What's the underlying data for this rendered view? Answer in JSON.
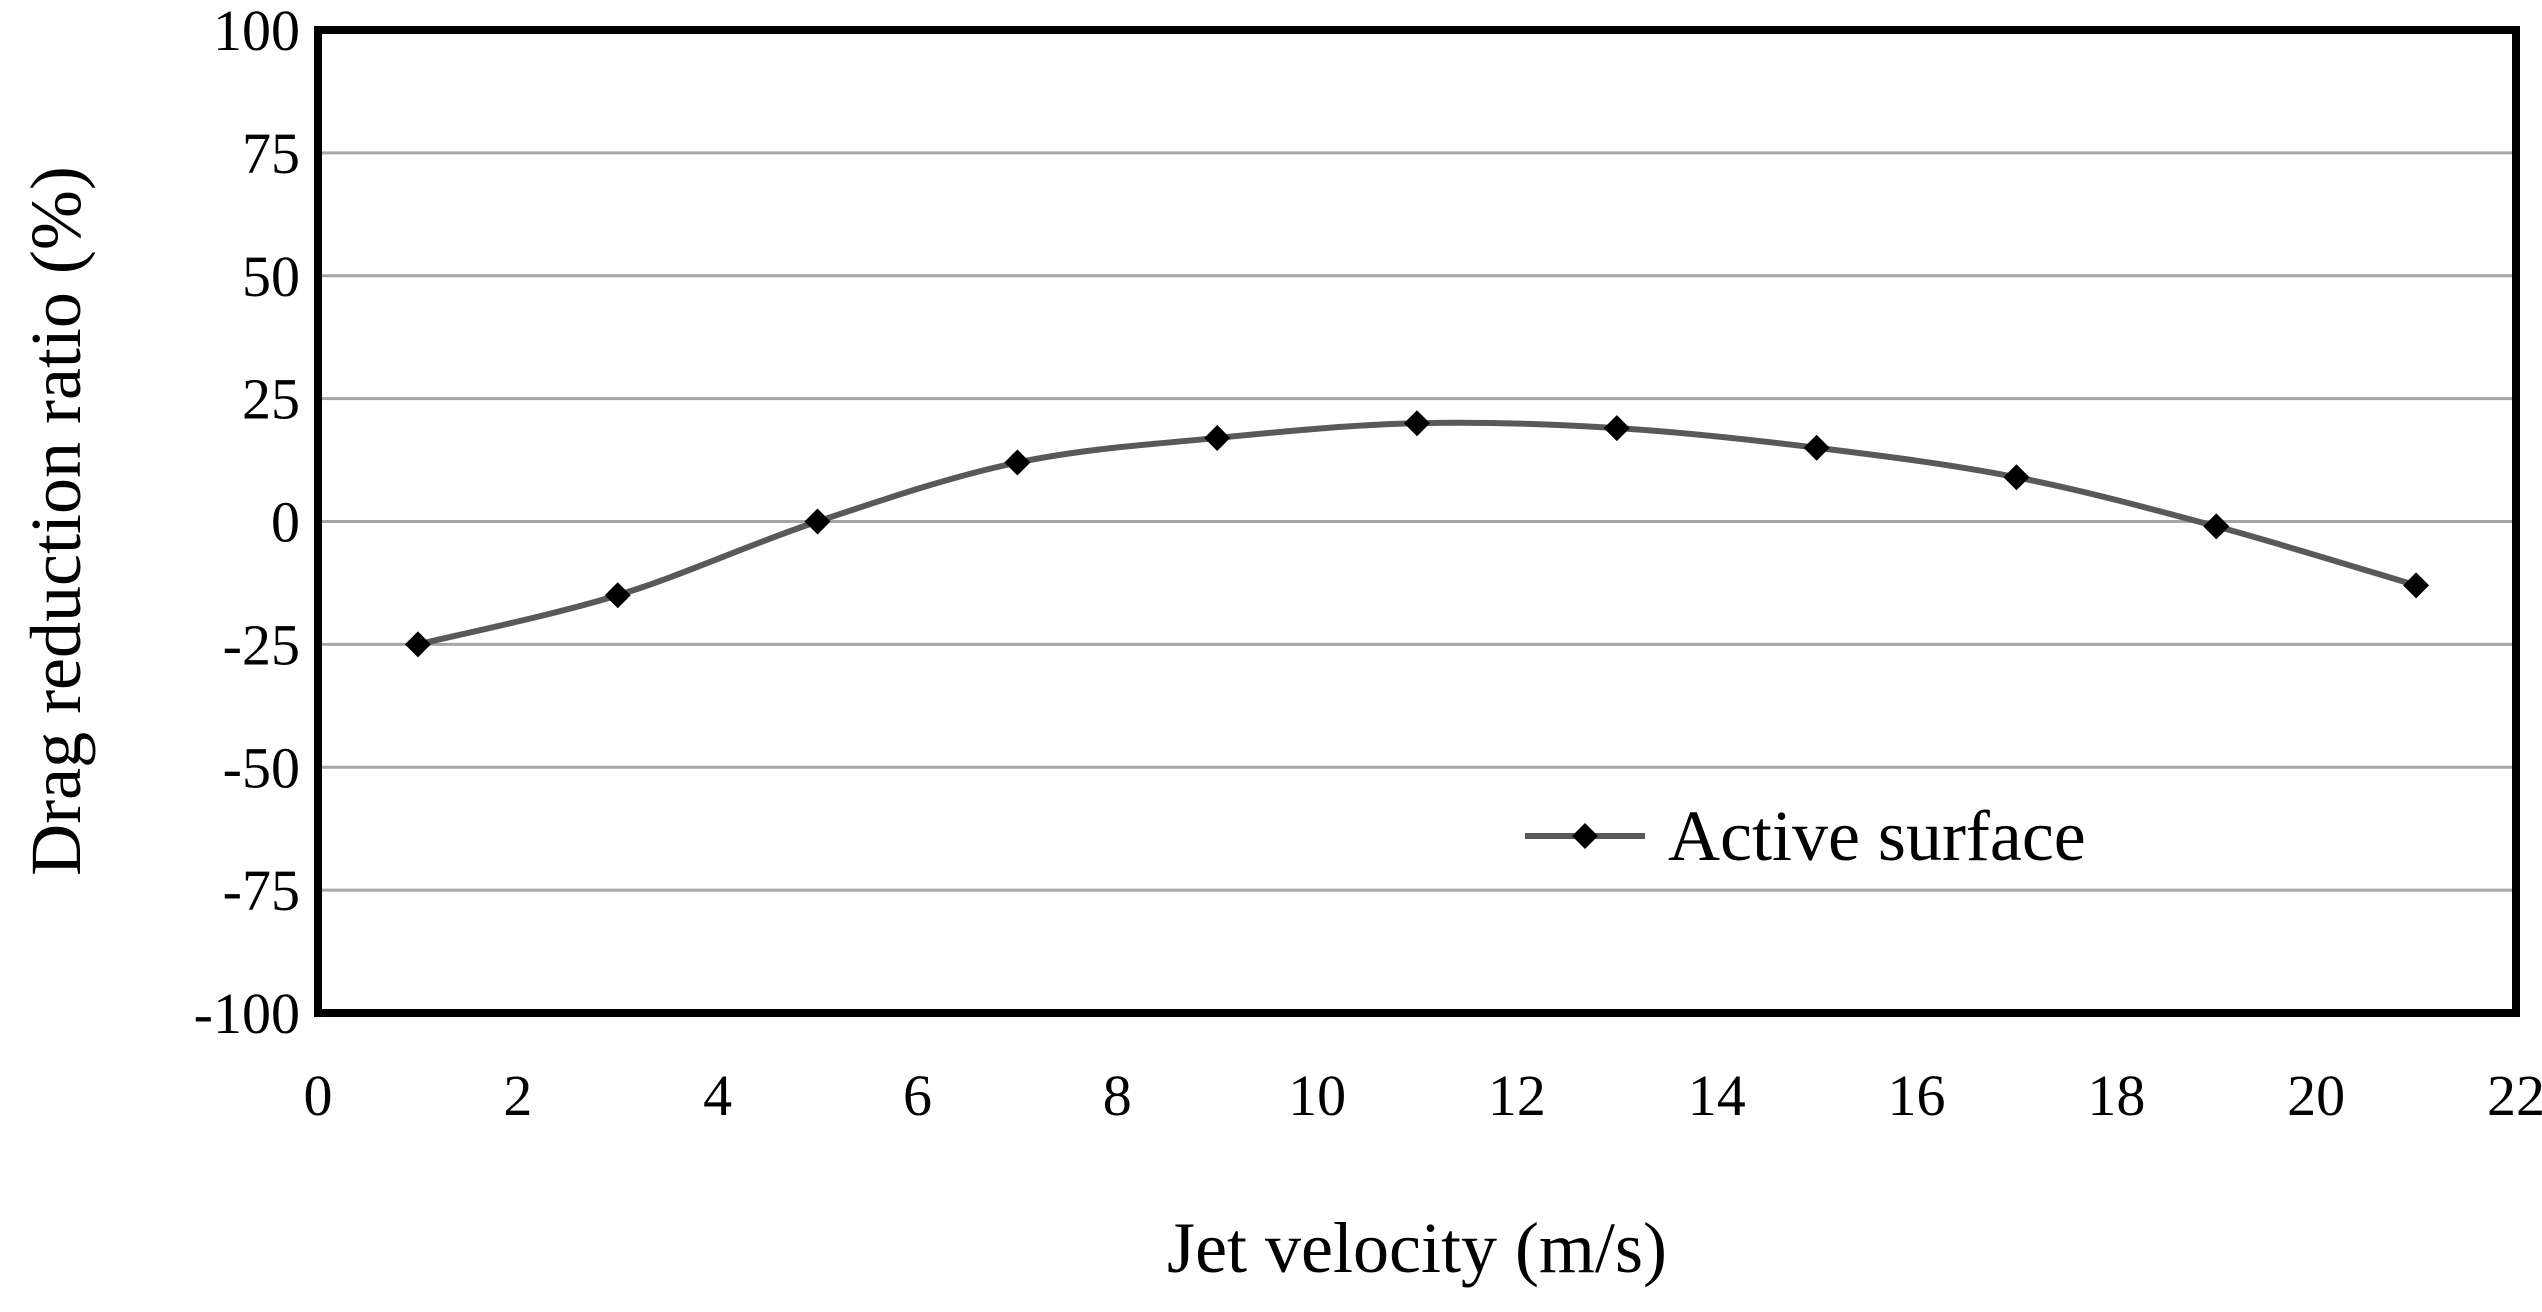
{
  "chart_data": {
    "type": "line",
    "title": "",
    "xlabel": "Jet velocity (m/s)",
    "ylabel": "Drag reduction ratio (%)",
    "xlim": [
      0,
      22
    ],
    "ylim": [
      -100,
      100
    ],
    "x_ticks": [
      "0",
      "2",
      "4",
      "6",
      "8",
      "10",
      "12",
      "14",
      "16",
      "18",
      "20",
      "22"
    ],
    "y_ticks": [
      "100",
      "75",
      "50",
      "25",
      "0",
      "-25",
      "-50",
      "-75",
      "-100"
    ],
    "grid": "horizontal",
    "legend_position": "lower-right",
    "series": [
      {
        "name": "Active surface",
        "color": "#595959",
        "marker": "diamond",
        "x": [
          1,
          3,
          5,
          7,
          9,
          11,
          13,
          15,
          17,
          19,
          21
        ],
        "y": [
          -25,
          -15,
          0,
          12,
          17,
          20,
          19,
          15,
          9,
          -1,
          -13
        ]
      }
    ]
  }
}
